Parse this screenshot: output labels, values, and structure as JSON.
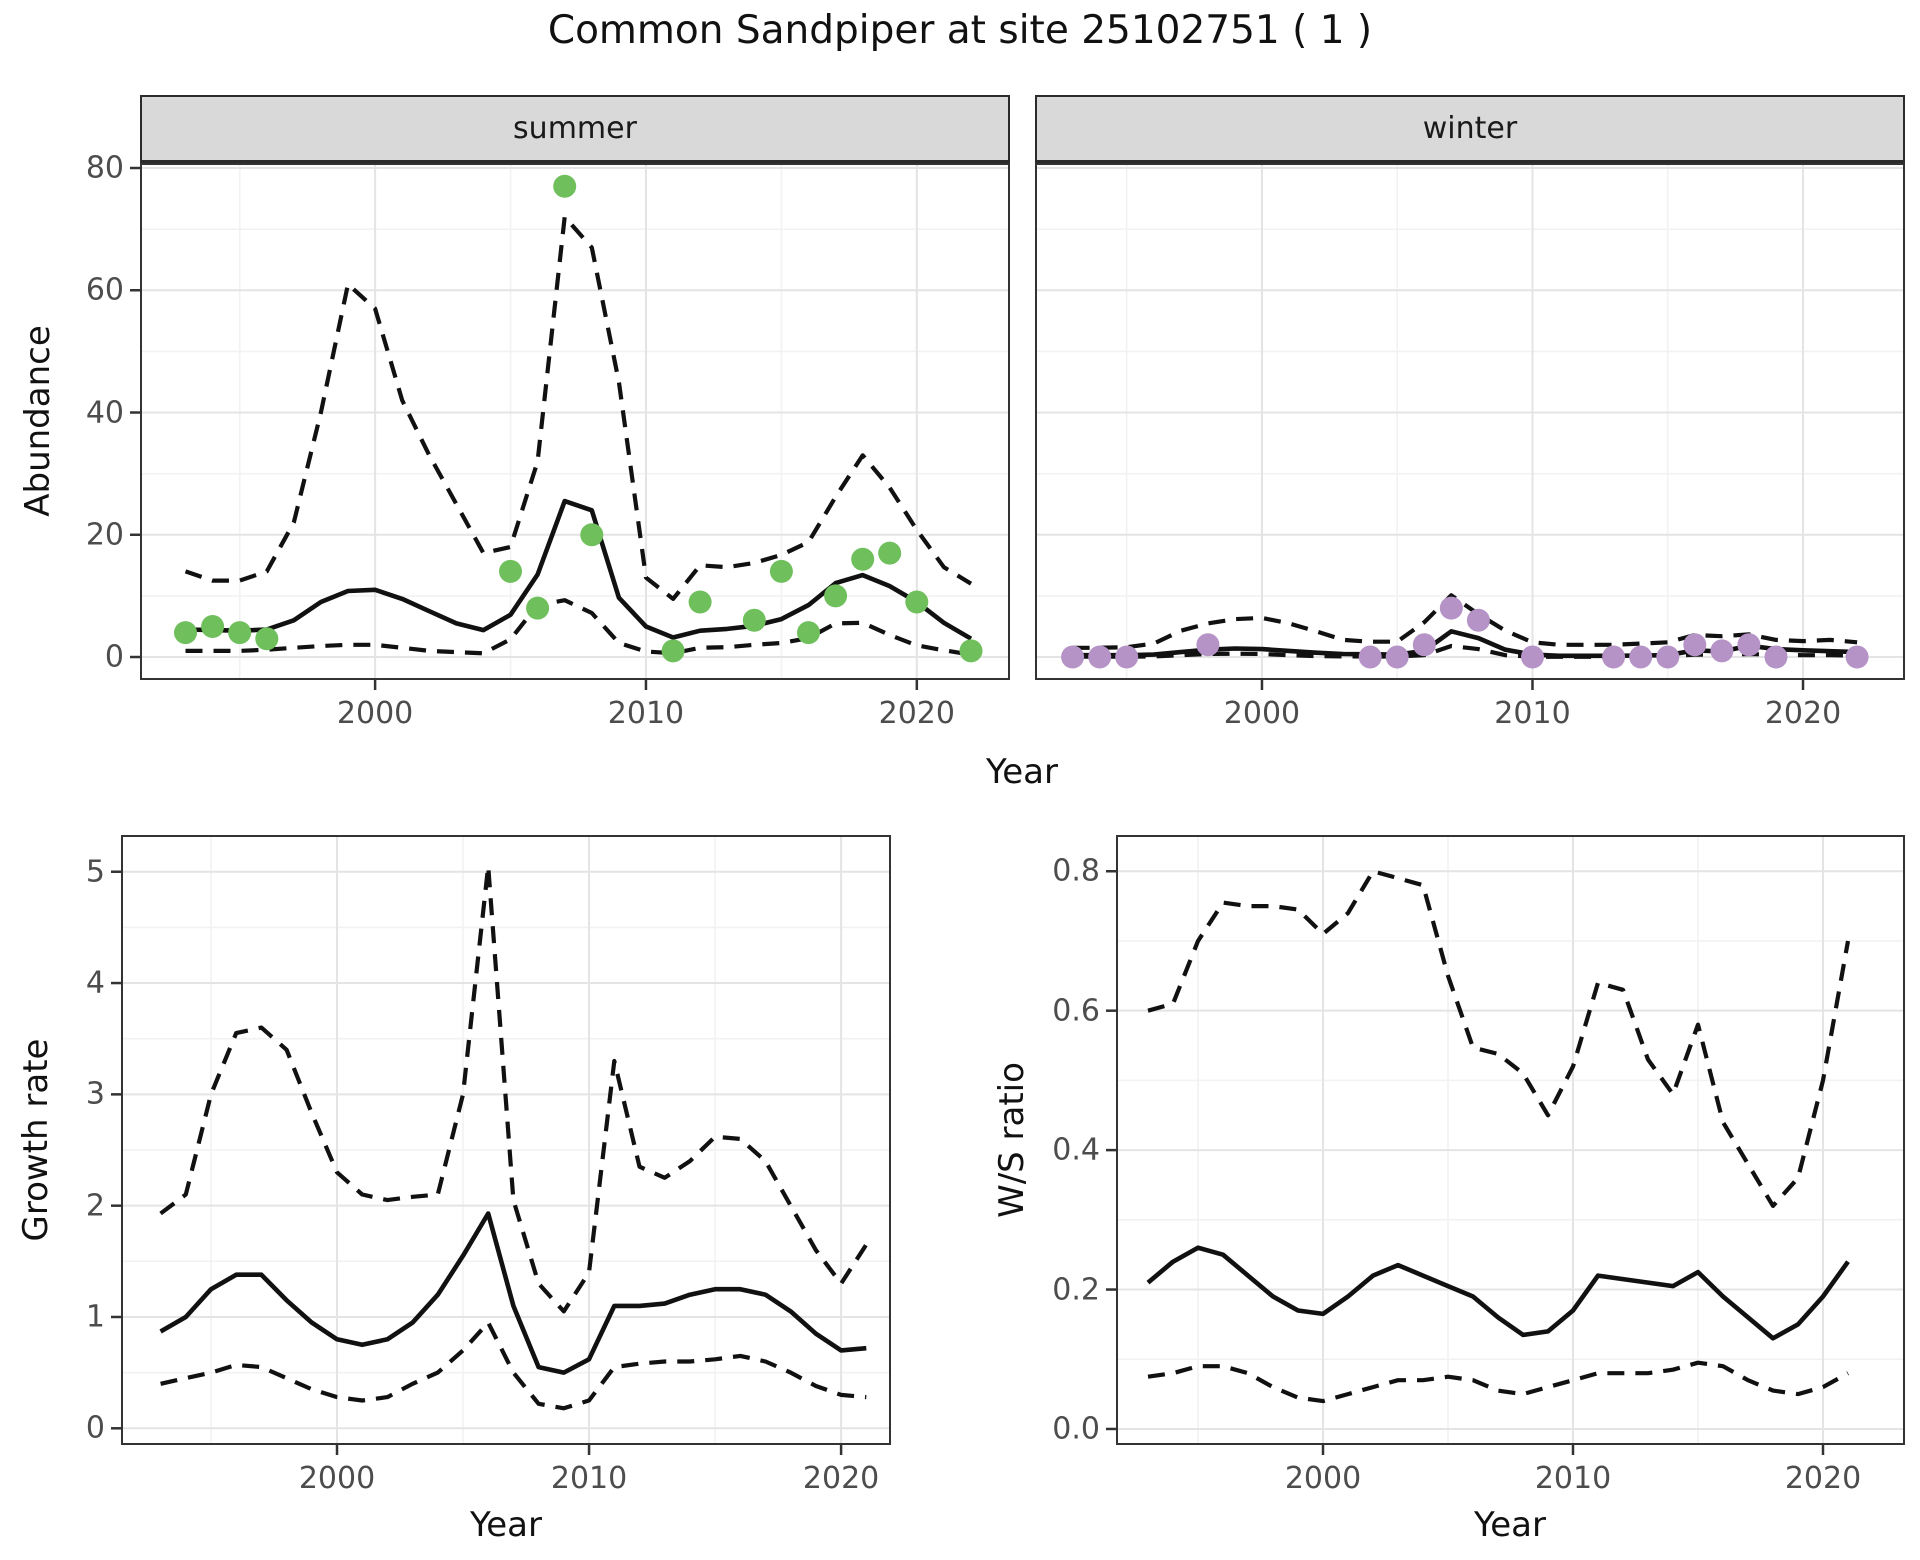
{
  "title": "Common Sandpiper at site 25102751 ( 1 )",
  "axes": {
    "top_y_title": "Abundance",
    "top_x_title": "Year",
    "bottom_left_y_title": "Growth rate",
    "bottom_left_x_title": "Year",
    "bottom_right_y_title": "W/S ratio",
    "bottom_right_x_title": "Year"
  },
  "colors": {
    "summer_points": "#6fbf5c",
    "winter_points": "#b593c6",
    "line": "#111111",
    "strip_bg": "#d9d9d9",
    "grid_major": "#e4e4e4",
    "grid_minor": "#f2f2f2",
    "tick_text": "#4d4d4d"
  },
  "chart_data": [
    {
      "id": "abundance_summer",
      "type": "line",
      "facet_label": "summer",
      "xlabel": "Year",
      "ylabel": "Abundance",
      "x_tick_values": [
        2000,
        2010,
        2020
      ],
      "x_tick_labels": [
        "2000",
        "2010",
        "2020"
      ],
      "y_tick_values": [
        0,
        20,
        40,
        60,
        80
      ],
      "y_tick_labels": [
        "0",
        "20",
        "40",
        "60",
        "80"
      ],
      "years": [
        1993,
        1994,
        1995,
        1996,
        1997,
        1998,
        1999,
        2000,
        2001,
        2002,
        2003,
        2004,
        2005,
        2006,
        2007,
        2008,
        2009,
        2010,
        2011,
        2012,
        2013,
        2014,
        2015,
        2016,
        2017,
        2018,
        2019,
        2020,
        2021,
        2022
      ],
      "series": [
        {
          "name": "fit",
          "style": "solid",
          "values": [
            4.5,
            4.4,
            4.3,
            4.5,
            6.0,
            9.0,
            10.8,
            11.0,
            9.5,
            7.5,
            5.5,
            4.4,
            6.9,
            13.5,
            25.5,
            24.0,
            9.7,
            5.0,
            3.2,
            4.3,
            4.6,
            5.1,
            6.2,
            8.5,
            12.1,
            13.4,
            11.6,
            9.0,
            5.6,
            3.0
          ]
        },
        {
          "name": "lower_ci",
          "style": "dashed",
          "values": [
            1.0,
            1.0,
            1.0,
            1.2,
            1.5,
            1.8,
            2.0,
            2.0,
            1.5,
            1.0,
            0.8,
            0.6,
            2.9,
            8.5,
            9.3,
            7.2,
            2.3,
            0.9,
            0.6,
            1.5,
            1.6,
            2.0,
            2.3,
            3.1,
            5.5,
            5.6,
            3.6,
            1.9,
            1.1,
            0.4
          ]
        },
        {
          "name": "upper_ci",
          "style": "dashed",
          "values": [
            14,
            12.5,
            12.5,
            14,
            22,
            40,
            61,
            57,
            42,
            33,
            25,
            17,
            18,
            32,
            72,
            67,
            45,
            13,
            9.5,
            15,
            14.7,
            15.4,
            16.7,
            18.8,
            26.2,
            33,
            27.7,
            20.8,
            14.7,
            12
          ]
        }
      ],
      "observations": {
        "color": "#6fbf5c",
        "points": [
          [
            1993,
            4
          ],
          [
            1994,
            5
          ],
          [
            1995,
            4
          ],
          [
            1996,
            3
          ],
          [
            2005,
            14
          ],
          [
            2006,
            8
          ],
          [
            2007,
            77
          ],
          [
            2008,
            20
          ],
          [
            2011,
            1
          ],
          [
            2012,
            9
          ],
          [
            2014,
            6
          ],
          [
            2015,
            14
          ],
          [
            2016,
            4
          ],
          [
            2017,
            10
          ],
          [
            2018,
            16
          ],
          [
            2019,
            17
          ],
          [
            2020,
            9
          ],
          [
            2022,
            1
          ]
        ]
      }
    },
    {
      "id": "abundance_winter",
      "type": "line",
      "facet_label": "winter",
      "xlabel": "Year",
      "ylabel": "Abundance",
      "x_tick_values": [
        2000,
        2010,
        2020
      ],
      "x_tick_labels": [
        "2000",
        "2010",
        "2020"
      ],
      "y_tick_values": [
        0,
        20,
        40,
        60,
        80
      ],
      "y_tick_labels": [],
      "years": [
        1993,
        1994,
        1995,
        1996,
        1997,
        1998,
        1999,
        2000,
        2001,
        2002,
        2003,
        2004,
        2005,
        2006,
        2007,
        2008,
        2009,
        2010,
        2011,
        2012,
        2013,
        2014,
        2015,
        2016,
        2017,
        2018,
        2019,
        2020,
        2021,
        2022
      ],
      "series": [
        {
          "name": "fit",
          "style": "solid",
          "values": [
            0.3,
            0.3,
            0.3,
            0.4,
            0.8,
            1.2,
            1.4,
            1.3,
            1.0,
            0.7,
            0.5,
            0.45,
            0.4,
            1.0,
            4.2,
            3.1,
            1.2,
            0.4,
            0.2,
            0.2,
            0.2,
            0.25,
            0.3,
            1.1,
            0.9,
            1.85,
            1.3,
            1.1,
            0.95,
            0.8
          ]
        },
        {
          "name": "lower_ci",
          "style": "dashed",
          "values": [
            0.05,
            0.05,
            0.05,
            0.1,
            0.3,
            0.5,
            0.55,
            0.5,
            0.3,
            0.15,
            0.1,
            0.08,
            0.08,
            0.3,
            1.8,
            1.3,
            0.3,
            0.06,
            0.04,
            0.04,
            0.05,
            0.06,
            0.1,
            0.4,
            0.35,
            0.5,
            0.35,
            0.3,
            0.3,
            0.25
          ]
        },
        {
          "name": "upper_ci",
          "style": "dashed",
          "values": [
            1.5,
            1.5,
            1.6,
            2.2,
            4.3,
            5.5,
            6.2,
            6.4,
            5.5,
            4.2,
            2.8,
            2.5,
            2.5,
            5.7,
            10.1,
            7.0,
            4.3,
            2.4,
            2.0,
            2.0,
            2.0,
            2.2,
            2.4,
            3.6,
            3.4,
            3.7,
            2.8,
            2.6,
            2.8,
            2.4
          ]
        }
      ],
      "observations": {
        "color": "#b593c6",
        "points": [
          [
            1993,
            0
          ],
          [
            1994,
            0
          ],
          [
            1995,
            0
          ],
          [
            1998,
            2
          ],
          [
            2004,
            0
          ],
          [
            2005,
            0
          ],
          [
            2006,
            2
          ],
          [
            2007,
            8
          ],
          [
            2008,
            6
          ],
          [
            2010,
            0
          ],
          [
            2013,
            0
          ],
          [
            2014,
            0
          ],
          [
            2015,
            0
          ],
          [
            2016,
            2
          ],
          [
            2017,
            1
          ],
          [
            2018,
            2
          ],
          [
            2019,
            0
          ],
          [
            2022,
            0
          ]
        ]
      }
    },
    {
      "id": "growth_rate",
      "type": "line",
      "facet_label": "",
      "xlabel": "Year",
      "ylabel": "Growth rate",
      "x_tick_values": [
        2000,
        2010,
        2020
      ],
      "x_tick_labels": [
        "2000",
        "2010",
        "2020"
      ],
      "y_tick_values": [
        0,
        1,
        2,
        3,
        4,
        5
      ],
      "y_tick_labels": [
        "0",
        "1",
        "2",
        "3",
        "4",
        "5"
      ],
      "years": [
        1993,
        1994,
        1995,
        1996,
        1997,
        1998,
        1999,
        2000,
        2001,
        2002,
        2003,
        2004,
        2005,
        2006,
        2007,
        2008,
        2009,
        2010,
        2011,
        2012,
        2013,
        2014,
        2015,
        2016,
        2017,
        2018,
        2019,
        2020,
        2021
      ],
      "series": [
        {
          "name": "fit",
          "style": "solid",
          "values": [
            0.87,
            1.0,
            1.25,
            1.38,
            1.38,
            1.15,
            0.95,
            0.8,
            0.75,
            0.8,
            0.95,
            1.2,
            1.55,
            1.93,
            1.1,
            0.55,
            0.5,
            0.62,
            1.1,
            1.1,
            1.12,
            1.2,
            1.25,
            1.25,
            1.2,
            1.05,
            0.85,
            0.7,
            0.72
          ]
        },
        {
          "name": "lower_ci",
          "style": "dashed",
          "values": [
            0.4,
            0.45,
            0.5,
            0.57,
            0.55,
            0.45,
            0.35,
            0.28,
            0.25,
            0.28,
            0.4,
            0.5,
            0.7,
            0.95,
            0.5,
            0.22,
            0.18,
            0.25,
            0.55,
            0.58,
            0.6,
            0.6,
            0.62,
            0.65,
            0.6,
            0.5,
            0.38,
            0.3,
            0.28
          ]
        },
        {
          "name": "upper_ci",
          "style": "dashed",
          "values": [
            1.93,
            2.1,
            3.0,
            3.55,
            3.6,
            3.4,
            2.83,
            2.3,
            2.1,
            2.05,
            2.08,
            2.1,
            3.0,
            5.05,
            2.05,
            1.3,
            1.05,
            1.4,
            3.3,
            2.35,
            2.25,
            2.4,
            2.62,
            2.6,
            2.4,
            2.0,
            1.6,
            1.3,
            1.65
          ]
        }
      ],
      "observations": {
        "color": "",
        "points": []
      }
    },
    {
      "id": "ws_ratio",
      "type": "line",
      "facet_label": "",
      "xlabel": "Year",
      "ylabel": "W/S ratio",
      "x_tick_values": [
        2000,
        2010,
        2020
      ],
      "x_tick_labels": [
        "2000",
        "2010",
        "2020"
      ],
      "y_tick_values": [
        0,
        0.2,
        0.4,
        0.6,
        0.8
      ],
      "y_tick_labels": [
        "0.0",
        "0.2",
        "0.4",
        "0.6",
        "0.8"
      ],
      "years": [
        1993,
        1994,
        1995,
        1996,
        1997,
        1998,
        1999,
        2000,
        2001,
        2002,
        2003,
        2004,
        2005,
        2006,
        2007,
        2008,
        2009,
        2010,
        2011,
        2012,
        2013,
        2014,
        2015,
        2016,
        2017,
        2018,
        2019,
        2020,
        2021
      ],
      "series": [
        {
          "name": "fit",
          "style": "solid",
          "values": [
            0.21,
            0.24,
            0.26,
            0.25,
            0.22,
            0.19,
            0.17,
            0.165,
            0.19,
            0.22,
            0.235,
            0.22,
            0.205,
            0.19,
            0.16,
            0.135,
            0.14,
            0.17,
            0.22,
            0.215,
            0.21,
            0.205,
            0.225,
            0.19,
            0.16,
            0.13,
            0.15,
            0.19,
            0.24
          ]
        },
        {
          "name": "lower_ci",
          "style": "dashed",
          "values": [
            0.075,
            0.08,
            0.09,
            0.09,
            0.08,
            0.06,
            0.045,
            0.04,
            0.05,
            0.06,
            0.07,
            0.07,
            0.075,
            0.07,
            0.055,
            0.05,
            0.06,
            0.07,
            0.08,
            0.08,
            0.08,
            0.085,
            0.095,
            0.09,
            0.07,
            0.055,
            0.05,
            0.06,
            0.08
          ]
        },
        {
          "name": "upper_ci",
          "style": "dashed",
          "values": [
            0.6,
            0.61,
            0.7,
            0.755,
            0.75,
            0.75,
            0.745,
            0.71,
            0.74,
            0.8,
            0.79,
            0.78,
            0.65,
            0.547,
            0.538,
            0.51,
            0.45,
            0.52,
            0.64,
            0.63,
            0.53,
            0.48,
            0.58,
            0.44,
            0.38,
            0.32,
            0.36,
            0.5,
            0.7
          ]
        }
      ],
      "observations": {
        "color": "",
        "points": []
      }
    }
  ]
}
